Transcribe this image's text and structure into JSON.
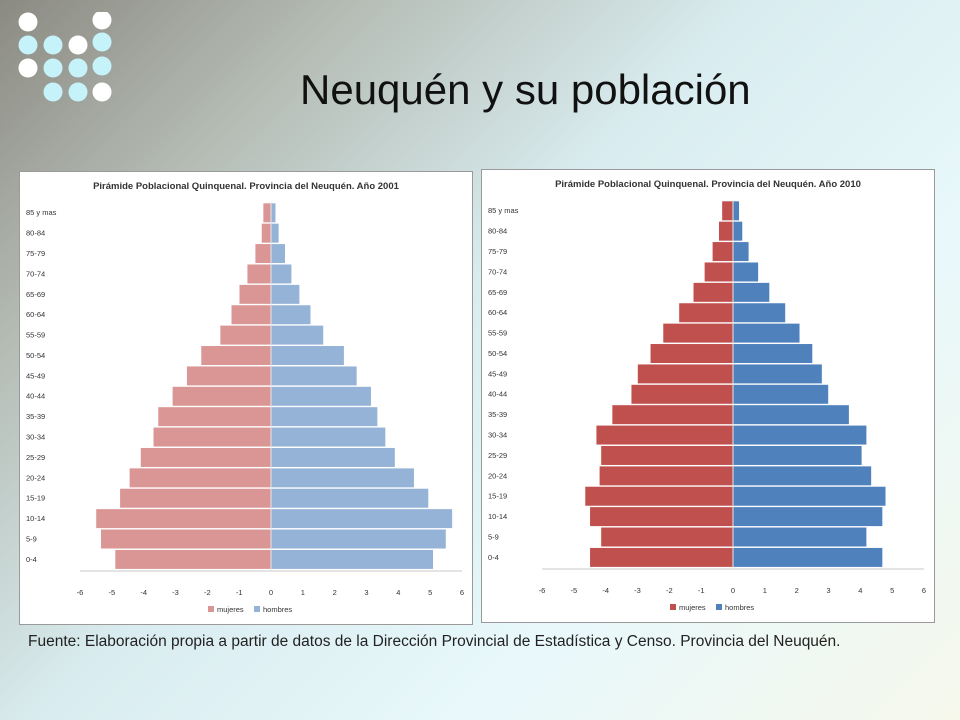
{
  "slide": {
    "title": "Neuquén y su población",
    "source": "Fuente: Elaboración propia a partir de datos de la Dirección Provincial de Estadística y Censo. Provincia del Neuquén."
  },
  "logo": {
    "icon": "dot-grid-logo",
    "colors": {
      "white": "#ffffff",
      "cyan": "#c6f2fa"
    }
  },
  "chart_data": [
    {
      "type": "bar",
      "orientation": "horizontal-diverging",
      "title": "Pirámide Poblacional Quinquenal. Provincia del Neuquén. Año 2001",
      "categories": [
        "0-4",
        "5-9",
        "10-14",
        "15-19",
        "20-24",
        "25-29",
        "30-34",
        "35-39",
        "40-44",
        "45-49",
        "50-54",
        "55-59",
        "60-64",
        "65-69",
        "70-74",
        "75-79",
        "80-84",
        "85 y mas"
      ],
      "series": [
        {
          "name": "mujeres",
          "color": "#d99694",
          "values": [
            -4.9,
            -5.35,
            -5.5,
            -4.75,
            -4.45,
            -4.1,
            -3.7,
            -3.55,
            -3.1,
            -2.65,
            -2.2,
            -1.6,
            -1.25,
            -1.0,
            -0.75,
            -0.5,
            -0.3,
            -0.25
          ]
        },
        {
          "name": "hombres",
          "color": "#95b3d7",
          "values": [
            5.1,
            5.5,
            5.7,
            4.95,
            4.5,
            3.9,
            3.6,
            3.35,
            3.15,
            2.7,
            2.3,
            1.65,
            1.25,
            0.9,
            0.65,
            0.45,
            0.25,
            0.15
          ]
        }
      ],
      "xlim": [
        -6,
        6
      ],
      "xticks": [
        "-6",
        "-5",
        "-4",
        "-3",
        "-2",
        "-1",
        "0",
        "1",
        "2",
        "3",
        "4",
        "5",
        "6"
      ],
      "legend": "bottom"
    },
    {
      "type": "bar",
      "orientation": "horizontal-diverging",
      "title": "Pirámide Poblacional Quinquenal. Provincia del Neuquén. Año 2010",
      "categories": [
        "0-4",
        "5-9",
        "10-14",
        "15-19",
        "20-24",
        "25-29",
        "30-34",
        "35-39",
        "40-44",
        "45-49",
        "50-54",
        "55-59",
        "60-64",
        "65-69",
        "70-74",
        "75-79",
        "80-84",
        "85 y mas"
      ],
      "series": [
        {
          "name": "mujeres",
          "color": "#c0504d",
          "values": [
            -4.5,
            -4.15,
            -4.5,
            -4.65,
            -4.2,
            -4.15,
            -4.3,
            -3.8,
            -3.2,
            -3.0,
            -2.6,
            -2.2,
            -1.7,
            -1.25,
            -0.9,
            -0.65,
            -0.45,
            -0.35
          ]
        },
        {
          "name": "hombres",
          "color": "#4f81bd",
          "values": [
            4.7,
            4.2,
            4.7,
            4.8,
            4.35,
            4.05,
            4.2,
            3.65,
            3.0,
            2.8,
            2.5,
            2.1,
            1.65,
            1.15,
            0.8,
            0.5,
            0.3,
            0.2
          ]
        }
      ],
      "xlim": [
        -6,
        6
      ],
      "xticks": [
        "-6",
        "-5",
        "-4",
        "-3",
        "-2",
        "-1",
        "0",
        "1",
        "2",
        "3",
        "4",
        "5",
        "6"
      ],
      "legend": "bottom"
    }
  ]
}
